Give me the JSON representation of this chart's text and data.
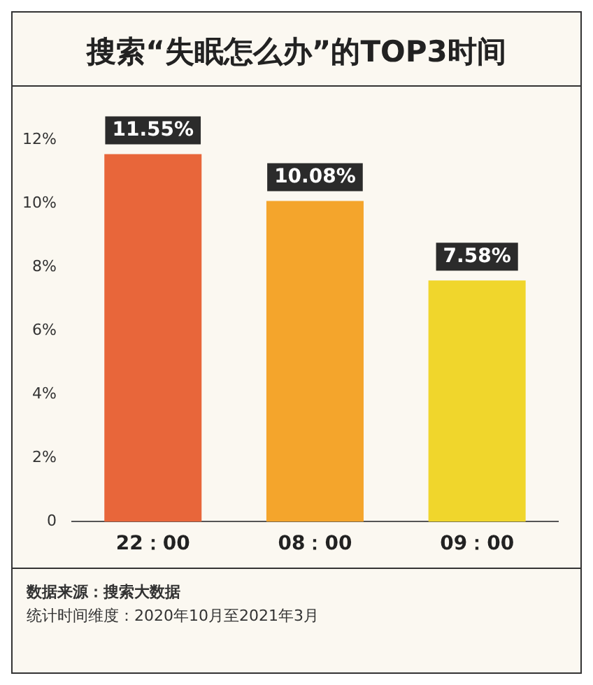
{
  "chart_data": {
    "type": "bar",
    "title": "搜索“失眠怎么办”的TOP3时间",
    "categories": [
      "22：00",
      "08：00",
      "09：00"
    ],
    "values": [
      11.55,
      10.08,
      7.58
    ],
    "colors": [
      "#e8663a",
      "#f4a52c",
      "#f0d62c"
    ],
    "value_labels": [
      "11.55%",
      "10.08%",
      "7.58%"
    ],
    "ylim": [
      0,
      12
    ],
    "yticks": [
      0,
      {
        "value": 2,
        "label": "2%"
      },
      {
        "value": 4,
        "label": "4%"
      },
      {
        "value": 6,
        "label": "6%"
      },
      {
        "value": 8,
        "label": "8%"
      },
      {
        "value": 10,
        "label": "10%"
      },
      {
        "value": 12,
        "label": "12%"
      }
    ],
    "grid": false,
    "legend": false,
    "annotations": [
      "数据来源：搜索大数据",
      "统计时间维度：2020年10月至2021年3月"
    ]
  }
}
